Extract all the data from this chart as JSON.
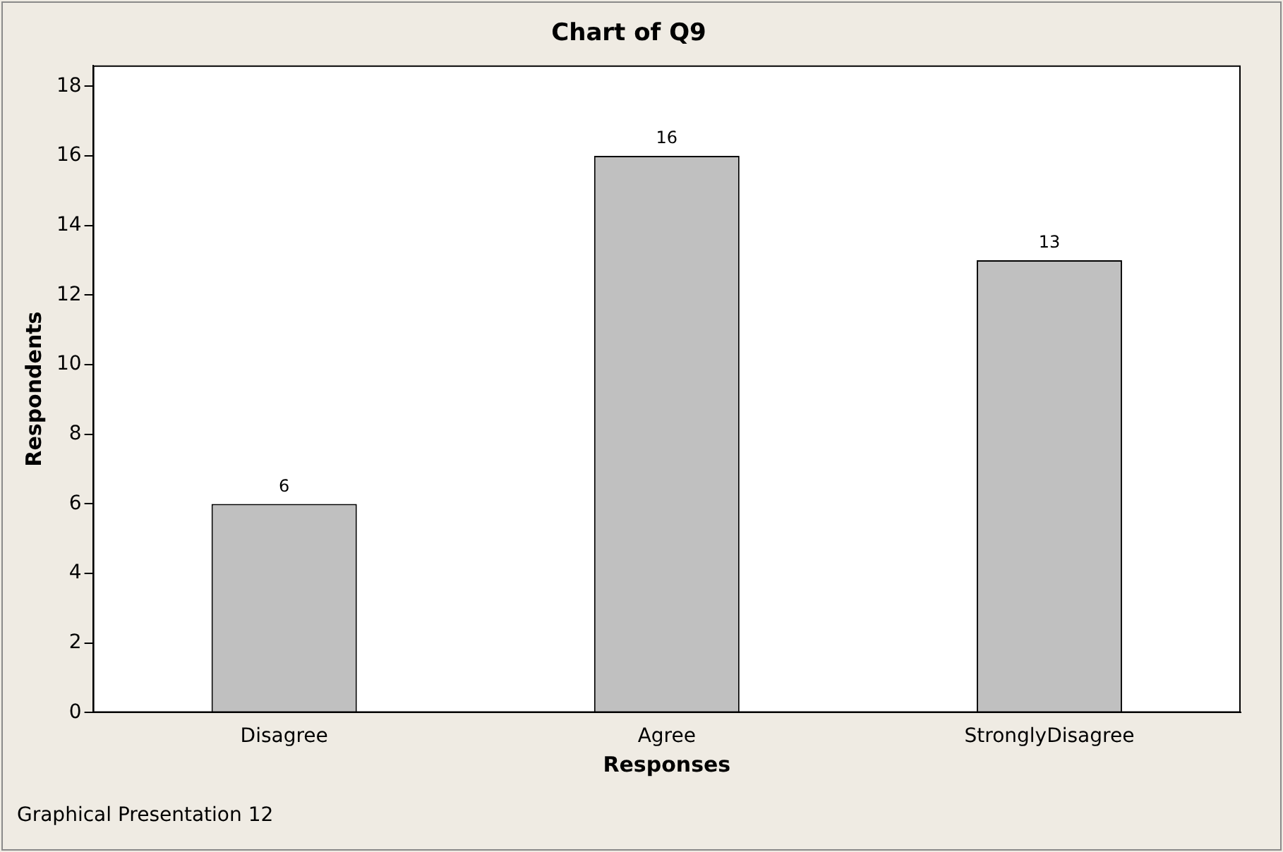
{
  "chart_data": {
    "type": "bar",
    "title": "Chart of Q9",
    "xlabel": "Responses",
    "ylabel": "Respondents",
    "categories": [
      "Disagree",
      "Agree",
      "StronglyDisagree"
    ],
    "values": [
      6,
      16,
      13
    ],
    "color": "#c0c0c0",
    "ylim": [
      0,
      18.6
    ],
    "yticks": [
      0,
      2,
      4,
      6,
      8,
      10,
      12,
      14,
      16,
      18
    ],
    "data_labels": true,
    "grid": false,
    "legend": false,
    "annotations": [
      "Graphical Presentation 12"
    ]
  }
}
